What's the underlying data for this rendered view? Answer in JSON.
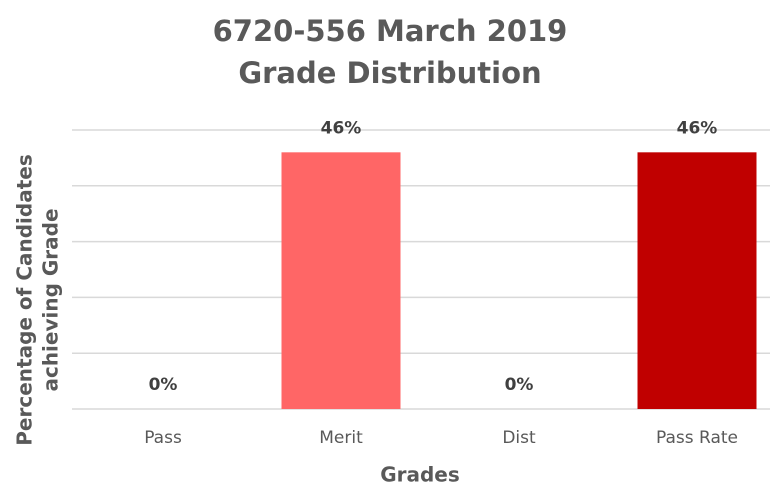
{
  "chart_data": {
    "type": "bar",
    "title": [
      "6720-556 March 2019",
      "Grade Distribution"
    ],
    "x_label": "Grades",
    "y_label": [
      "Percentage of Candidates",
      "achieving Grade"
    ],
    "categories": [
      "Pass",
      "Merit",
      "Dist",
      "Pass Rate"
    ],
    "values": [
      0,
      46,
      0,
      46
    ],
    "value_labels": [
      "0%",
      "46%",
      "0%",
      "46%"
    ],
    "colors": [
      "#ff9999",
      "#ff6666",
      "#e60000",
      "#c00000"
    ],
    "ylim": [
      0,
      50
    ],
    "yticks": [
      0,
      10,
      20,
      30,
      40,
      50
    ],
    "grid": true
  }
}
